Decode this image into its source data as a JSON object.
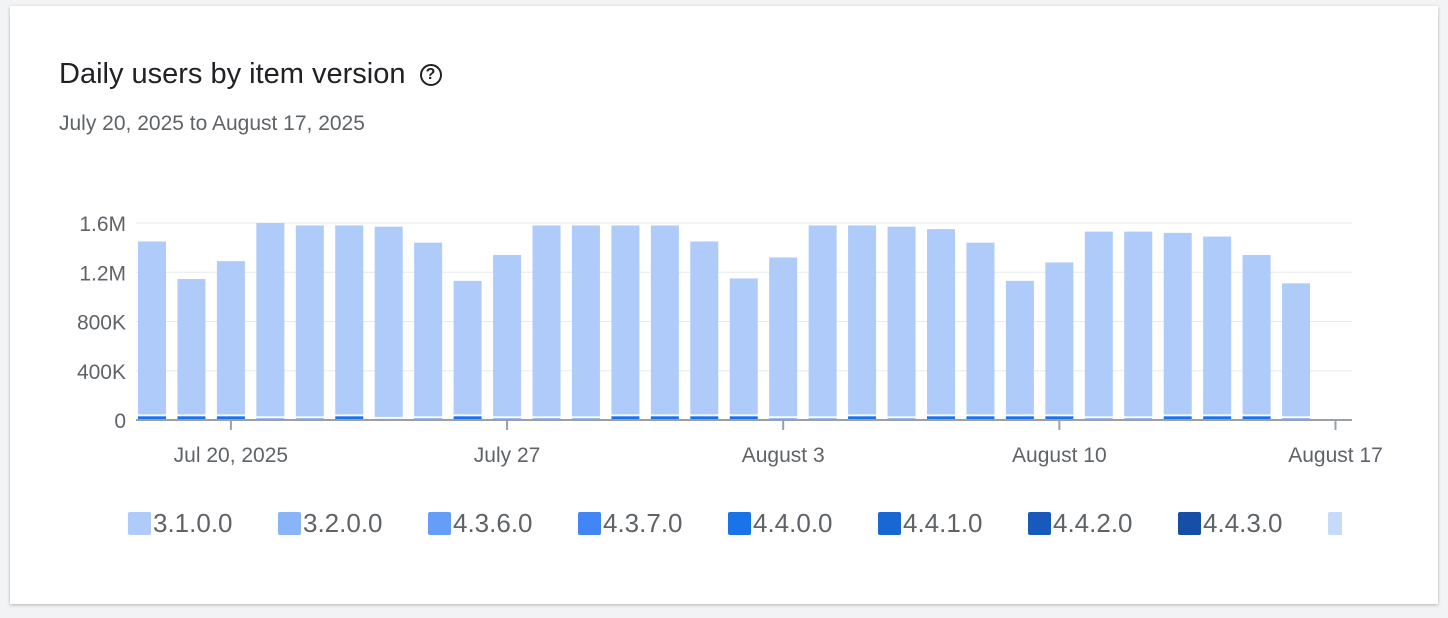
{
  "header": {
    "title": "Daily users by item version",
    "subtitle": "July 20, 2025 to August 17, 2025",
    "help_icon": "question-circle-icon"
  },
  "chart_data": {
    "type": "bar",
    "stacked": true,
    "title": "Daily users by item version",
    "subtitle": "July 20, 2025 to August 17, 2025",
    "ylim": [
      0,
      1600000
    ],
    "y_ticks": [
      "0",
      "400K",
      "800K",
      "1.2M",
      "1.6M"
    ],
    "y_tick_values": [
      0,
      400000,
      800000,
      1200000,
      1600000
    ],
    "x_ticks": [
      {
        "label": "Jul 20, 2025",
        "index": 2
      },
      {
        "label": "July 27",
        "index": 9
      },
      {
        "label": "August 3",
        "index": 16
      },
      {
        "label": "August 10",
        "index": 23
      },
      {
        "label": "August 17",
        "index": 30
      }
    ],
    "grid": true,
    "legend_position": "bottom",
    "series_legend": [
      {
        "name": "3.1.0.0",
        "color": "#aecbfa"
      },
      {
        "name": "3.2.0.0",
        "color": "#8ab4f8"
      },
      {
        "name": "4.3.6.0",
        "color": "#669df6"
      },
      {
        "name": "4.3.7.0",
        "color": "#4285f4"
      },
      {
        "name": "4.4.0.0",
        "color": "#1a73e8"
      },
      {
        "name": "4.4.1.0",
        "color": "#1967d2"
      },
      {
        "name": "4.4.2.0",
        "color": "#185abc"
      },
      {
        "name": "4.4.3.0",
        "color": "#174ea6"
      },
      {
        "name": "",
        "color": "#c6dafc"
      }
    ],
    "totals": [
      1450000,
      1145000,
      1290000,
      1600000,
      1580000,
      1580000,
      1570000,
      1440000,
      1130000,
      1340000,
      1580000,
      1580000,
      1580000,
      1580000,
      1450000,
      1150000,
      1320000,
      1580000,
      1580000,
      1570000,
      1550000,
      1440000,
      1130000,
      1280000,
      1530000,
      1530000,
      1520000,
      1490000,
      1340000,
      1110000
    ],
    "base_values": [
      30000,
      30000,
      30000,
      15000,
      15000,
      30000,
      10000,
      15000,
      30000,
      15000,
      15000,
      15000,
      30000,
      30000,
      30000,
      30000,
      15000,
      15000,
      30000,
      15000,
      30000,
      30000,
      30000,
      30000,
      15000,
      15000,
      30000,
      30000,
      30000,
      15000
    ],
    "base_series": [
      4,
      4,
      4,
      1,
      1,
      4,
      0,
      1,
      4,
      1,
      1,
      1,
      4,
      4,
      4,
      4,
      1,
      1,
      4,
      1,
      4,
      4,
      4,
      4,
      1,
      1,
      4,
      4,
      4,
      1
    ]
  }
}
